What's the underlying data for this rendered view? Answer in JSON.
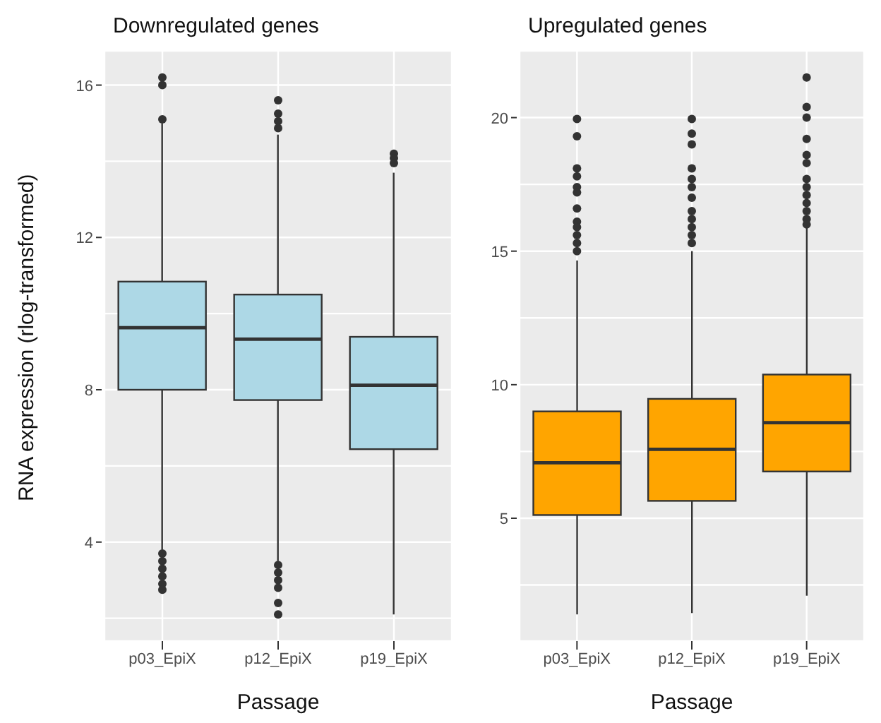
{
  "chart_data": [
    {
      "type": "box",
      "title": "Downregulated genes",
      "xlabel": "Passage",
      "ylabel": "RNA expression (rlog-transformed)",
      "categories": [
        "p03_EpiX",
        "p12_EpiX",
        "p19_EpiX"
      ],
      "color": "#add8e6",
      "grid": true,
      "ylim": [
        1.4,
        16.9
      ],
      "yticks": [
        {
          "value": 2,
          "label": null
        },
        4,
        {
          "value": 6,
          "label": null
        },
        8,
        {
          "value": 10,
          "label": null
        },
        12,
        {
          "value": 14,
          "label": null
        },
        16
      ],
      "boxes": [
        {
          "low": 3.8,
          "q1": 8.0,
          "median": 9.63,
          "q3": 10.84,
          "high": 15.0,
          "outliers": [
            16.2,
            16.0,
            15.1,
            3.7,
            3.5,
            3.3,
            3.1,
            2.9,
            2.75
          ]
        },
        {
          "low": 3.5,
          "q1": 7.73,
          "median": 9.33,
          "q3": 10.5,
          "high": 14.7,
          "outliers": [
            15.6,
            15.25,
            15.05,
            14.87,
            3.4,
            3.2,
            3.0,
            2.8,
            2.4,
            2.1
          ]
        },
        {
          "low": 2.1,
          "q1": 6.44,
          "median": 8.12,
          "q3": 9.39,
          "high": 13.7,
          "outliers": [
            14.2,
            14.08,
            13.95
          ]
        }
      ]
    },
    {
      "type": "box",
      "title": "Upregulated genes",
      "xlabel": "Passage",
      "categories": [
        "p03_EpiX",
        "p12_EpiX",
        "p19_EpiX"
      ],
      "color": "#ffa500",
      "grid": true,
      "ylim": [
        0.4,
        22.5
      ],
      "yticks": [
        {
          "value": 2.5,
          "label": null
        },
        5,
        {
          "value": 7.5,
          "label": null
        },
        10,
        {
          "value": 12.5,
          "label": null
        },
        15,
        {
          "value": 17.5,
          "label": null
        },
        20
      ],
      "boxes": [
        {
          "low": 1.4,
          "q1": 5.12,
          "median": 7.08,
          "q3": 9.0,
          "high": 14.65,
          "outliers": [
            19.95,
            19.3,
            18.1,
            17.8,
            17.4,
            17.2,
            16.6,
            16.1,
            15.9,
            15.6,
            15.3,
            15.0
          ]
        },
        {
          "low": 1.45,
          "q1": 5.65,
          "median": 7.58,
          "q3": 9.47,
          "high": 15.0,
          "outliers": [
            19.95,
            19.4,
            19.0,
            18.1,
            17.7,
            17.4,
            17.0,
            16.5,
            16.2,
            15.9,
            15.6,
            15.3
          ]
        },
        {
          "low": 2.1,
          "q1": 6.75,
          "median": 8.58,
          "q3": 10.38,
          "high": 15.9,
          "outliers": [
            21.5,
            20.4,
            20.0,
            19.2,
            18.6,
            18.3,
            17.7,
            17.4,
            17.1,
            16.8,
            16.5,
            16.2,
            16.0
          ]
        }
      ]
    }
  ]
}
